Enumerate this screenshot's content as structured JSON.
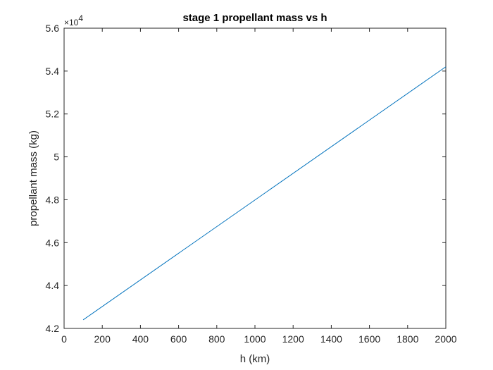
{
  "chart_data": {
    "type": "line",
    "title": "stage 1 propellant mass vs h",
    "xlabel": "h (km)",
    "ylabel": "propellant mass (kg)",
    "xlim": [
      0,
      2000
    ],
    "ylim": [
      4.2,
      5.6
    ],
    "y_multiplier_label": "×10",
    "y_multiplier_exponent": "4",
    "xticks": [
      "0",
      "200",
      "400",
      "600",
      "800",
      "1000",
      "1200",
      "1400",
      "1600",
      "1800",
      "2000"
    ],
    "yticks": [
      "4.2",
      "4.4",
      "4.6",
      "4.8",
      "5",
      "5.2",
      "5.4",
      "5.6"
    ],
    "grid": false,
    "box": true,
    "series": [
      {
        "color": "#0072BD",
        "x": [
          100,
          2000
        ],
        "y": [
          4.24,
          5.42
        ]
      }
    ]
  }
}
